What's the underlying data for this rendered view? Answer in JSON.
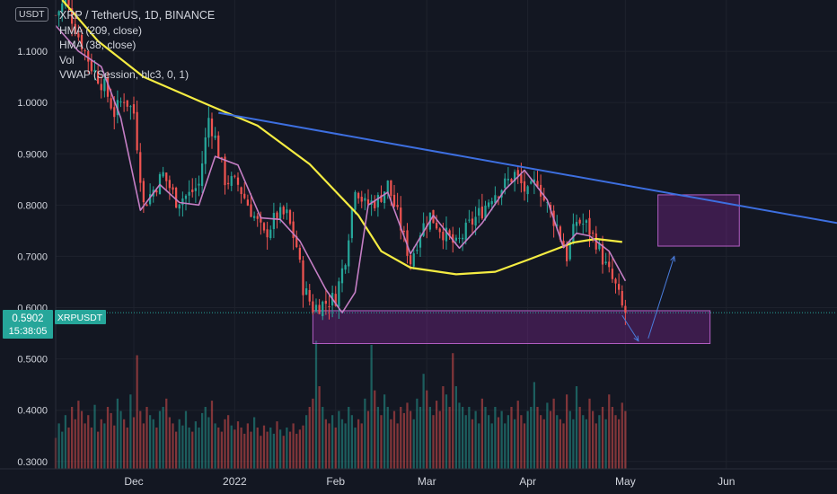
{
  "currency_badge": "USDT",
  "legend": {
    "title": "XRP / TetherUS, 1D, BINANCE",
    "items": [
      "HMA (209, close)",
      "HMA (38, close)",
      "Vol",
      "VWAP (Session, hlc3, 0, 1)"
    ]
  },
  "price_tag": {
    "value": "0.5902",
    "time": "15:38:05",
    "symbol": "XRPUSDT",
    "color": "#26a69a"
  },
  "chart_data": {
    "type": "candlestick",
    "ylim": [
      0.2856,
      1.2
    ],
    "y_ticks": [
      0.3,
      0.4,
      0.5,
      0.6,
      0.7,
      0.8,
      0.9,
      1.0,
      1.1
    ],
    "y_tick_labels": [
      "0.3000",
      "0.4000",
      "0.5000",
      "0.6000",
      "0.7000",
      "0.8000",
      "0.9000",
      "1.0000",
      "1.1000"
    ],
    "x_range": [
      "2021-11-07",
      "2022-07-05"
    ],
    "x_ticks": [
      {
        "date": "2021-12-01",
        "label": "Dec"
      },
      {
        "date": "2022-01-01",
        "label": "2022"
      },
      {
        "date": "2022-02-01",
        "label": "Feb"
      },
      {
        "date": "2022-03-01",
        "label": "Mar"
      },
      {
        "date": "2022-04-01",
        "label": "Apr"
      },
      {
        "date": "2022-05-01",
        "label": "May"
      },
      {
        "date": "2022-06-01",
        "label": "Jun"
      }
    ],
    "colors": {
      "up": "#26a69a",
      "down": "#ef5350",
      "hma_long": "#f5ec42",
      "hma_short": "#c47ec4",
      "trendline": "#3d6fe0",
      "zone": "#9c27b0"
    },
    "price_path": [
      [
        "2021-11-07",
        1.17
      ],
      [
        "2021-11-10",
        1.2
      ],
      [
        "2021-11-14",
        1.13
      ],
      [
        "2021-11-18",
        1.07
      ],
      [
        "2021-11-22",
        1.03
      ],
      [
        "2021-11-25",
        0.98
      ],
      [
        "2021-11-28",
        1.01
      ],
      [
        "2021-12-01",
        0.98
      ],
      [
        "2021-12-04",
        0.8
      ],
      [
        "2021-12-07",
        0.83
      ],
      [
        "2021-12-10",
        0.86
      ],
      [
        "2021-12-14",
        0.81
      ],
      [
        "2021-12-18",
        0.82
      ],
      [
        "2021-12-21",
        0.84
      ],
      [
        "2021-12-24",
        0.97
      ],
      [
        "2021-12-26",
        0.93
      ],
      [
        "2021-12-29",
        0.85
      ],
      [
        "2022-01-02",
        0.84
      ],
      [
        "2022-01-06",
        0.79
      ],
      [
        "2022-01-10",
        0.74
      ],
      [
        "2022-01-14",
        0.78
      ],
      [
        "2022-01-17",
        0.78
      ],
      [
        "2022-01-20",
        0.72
      ],
      [
        "2022-01-22",
        0.64
      ],
      [
        "2022-01-25",
        0.6
      ],
      [
        "2022-01-29",
        0.61
      ],
      [
        "2022-02-01",
        0.62
      ],
      [
        "2022-02-04",
        0.7
      ],
      [
        "2022-02-07",
        0.84
      ],
      [
        "2022-02-10",
        0.8
      ],
      [
        "2022-02-14",
        0.81
      ],
      [
        "2022-02-17",
        0.84
      ],
      [
        "2022-02-20",
        0.78
      ],
      [
        "2022-02-24",
        0.69
      ],
      [
        "2022-02-27",
        0.75
      ],
      [
        "2022-03-02",
        0.78
      ],
      [
        "2022-03-07",
        0.74
      ],
      [
        "2022-03-10",
        0.72
      ],
      [
        "2022-03-14",
        0.76
      ],
      [
        "2022-03-18",
        0.79
      ],
      [
        "2022-03-21",
        0.82
      ],
      [
        "2022-03-25",
        0.84
      ],
      [
        "2022-03-28",
        0.86
      ],
      [
        "2022-04-01",
        0.82
      ],
      [
        "2022-04-04",
        0.85
      ],
      [
        "2022-04-06",
        0.81
      ],
      [
        "2022-04-10",
        0.76
      ],
      [
        "2022-04-13",
        0.7
      ],
      [
        "2022-04-16",
        0.77
      ],
      [
        "2022-04-19",
        0.76
      ],
      [
        "2022-04-22",
        0.73
      ],
      [
        "2022-04-25",
        0.68
      ],
      [
        "2022-04-28",
        0.64
      ],
      [
        "2022-04-30",
        0.6
      ],
      [
        "2022-05-01",
        0.59
      ]
    ],
    "hma_209": [
      [
        "2021-11-09",
        1.2
      ],
      [
        "2021-11-20",
        1.12
      ],
      [
        "2021-12-04",
        1.05
      ],
      [
        "2021-12-24",
        0.995
      ],
      [
        "2022-01-08",
        0.955
      ],
      [
        "2022-01-24",
        0.88
      ],
      [
        "2022-02-08",
        0.78
      ],
      [
        "2022-02-15",
        0.71
      ],
      [
        "2022-02-24",
        0.678
      ],
      [
        "2022-03-10",
        0.665
      ],
      [
        "2022-03-22",
        0.67
      ],
      [
        "2022-04-01",
        0.693
      ],
      [
        "2022-04-15",
        0.727
      ],
      [
        "2022-04-22",
        0.734
      ],
      [
        "2022-04-30",
        0.728
      ]
    ],
    "hma_38": [
      [
        "2021-11-07",
        1.15
      ],
      [
        "2021-11-14",
        1.1
      ],
      [
        "2021-11-21",
        1.07
      ],
      [
        "2021-11-27",
        0.97
      ],
      [
        "2021-12-03",
        0.79
      ],
      [
        "2021-12-09",
        0.84
      ],
      [
        "2021-12-15",
        0.805
      ],
      [
        "2021-12-21",
        0.8
      ],
      [
        "2021-12-26",
        0.895
      ],
      [
        "2022-01-02",
        0.878
      ],
      [
        "2022-01-09",
        0.775
      ],
      [
        "2022-01-15",
        0.772
      ],
      [
        "2022-01-21",
        0.73
      ],
      [
        "2022-01-29",
        0.635
      ],
      [
        "2022-02-03",
        0.59
      ],
      [
        "2022-02-07",
        0.63
      ],
      [
        "2022-02-11",
        0.8
      ],
      [
        "2022-02-17",
        0.825
      ],
      [
        "2022-02-24",
        0.705
      ],
      [
        "2022-03-03",
        0.78
      ],
      [
        "2022-03-11",
        0.716
      ],
      [
        "2022-03-18",
        0.765
      ],
      [
        "2022-03-25",
        0.83
      ],
      [
        "2022-03-31",
        0.868
      ],
      [
        "2022-04-07",
        0.81
      ],
      [
        "2022-04-12",
        0.717
      ],
      [
        "2022-04-16",
        0.745
      ],
      [
        "2022-04-20",
        0.74
      ],
      [
        "2022-04-26",
        0.71
      ],
      [
        "2022-05-01",
        0.652
      ]
    ],
    "trendline": {
      "from": [
        "2021-12-27",
        0.98
      ],
      "to": [
        "2022-07-05",
        0.765
      ]
    },
    "support_zone": {
      "from_date": "2022-01-25",
      "to_date": "2022-05-27",
      "low": 0.53,
      "high": 0.594
    },
    "target_zone": {
      "from_date": "2022-05-11",
      "to_date": "2022-06-05",
      "low": 0.72,
      "high": 0.82
    },
    "arrows": [
      {
        "from": [
          "2022-04-30",
          0.585
        ],
        "to": [
          "2022-05-05",
          0.535
        ]
      },
      {
        "from": [
          "2022-05-08",
          0.54
        ],
        "to": [
          "2022-05-16",
          0.7
        ]
      }
    ],
    "volume_note": "relative volume bars (0-1), one per day",
    "volume": [
      0.15,
      0.22,
      0.18,
      0.26,
      0.2,
      0.3,
      0.24,
      0.33,
      0.28,
      0.22,
      0.26,
      0.2,
      0.31,
      0.18,
      0.24,
      0.22,
      0.3,
      0.27,
      0.21,
      0.34,
      0.28,
      0.24,
      0.2,
      0.36,
      0.25,
      0.55,
      0.28,
      0.22,
      0.3,
      0.26,
      0.24,
      0.2,
      0.28,
      0.3,
      0.34,
      0.25,
      0.22,
      0.18,
      0.24,
      0.21,
      0.28,
      0.2,
      0.18,
      0.23,
      0.2,
      0.27,
      0.3,
      0.25,
      0.33,
      0.22,
      0.2,
      0.18,
      0.24,
      0.26,
      0.21,
      0.19,
      0.23,
      0.2,
      0.17,
      0.22,
      0.18,
      0.25,
      0.2,
      0.16,
      0.21,
      0.18,
      0.2,
      0.17,
      0.23,
      0.19,
      0.16,
      0.2,
      0.18,
      0.22,
      0.17,
      0.19,
      0.21,
      0.26,
      0.3,
      0.34,
      0.62,
      0.4,
      0.3,
      0.24,
      0.22,
      0.26,
      0.2,
      0.28,
      0.24,
      0.22,
      0.3,
      0.26,
      0.2,
      0.24,
      0.22,
      0.34,
      0.28,
      0.6,
      0.38,
      0.3,
      0.26,
      0.36,
      0.3,
      0.24,
      0.28,
      0.22,
      0.3,
      0.27,
      0.32,
      0.28,
      0.24,
      0.34,
      0.3,
      0.46,
      0.38,
      0.3,
      0.26,
      0.33,
      0.28,
      0.4,
      0.36,
      0.3,
      0.56,
      0.4,
      0.32,
      0.3,
      0.26,
      0.3,
      0.24,
      0.28,
      0.22,
      0.34,
      0.3,
      0.26,
      0.22,
      0.3,
      0.25,
      0.28,
      0.22,
      0.26,
      0.3,
      0.24,
      0.33,
      0.26,
      0.22,
      0.28,
      0.3,
      0.42,
      0.3,
      0.26,
      0.24,
      0.32,
      0.28,
      0.34,
      0.26,
      0.24,
      0.22,
      0.36,
      0.28,
      0.24,
      0.4,
      0.3,
      0.26,
      0.24,
      0.34,
      0.28,
      0.22,
      0.26,
      0.3,
      0.24,
      0.36,
      0.3,
      0.26,
      0.24,
      0.32,
      0.28,
      0.22,
      0.26,
      0.34,
      0.28
    ]
  }
}
